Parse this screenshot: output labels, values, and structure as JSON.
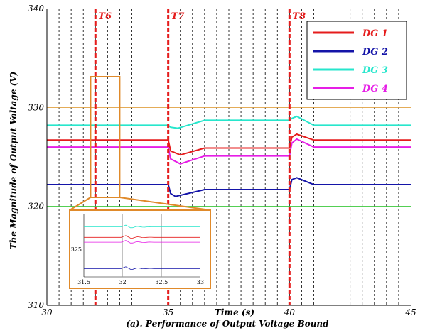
{
  "chart_data": {
    "type": "line",
    "title": "",
    "caption": "(a). Performance of Output Voltage Bound",
    "xlabel": "Time (s)",
    "ylabel": "The Magnitude of Output Voltage (V)",
    "xlim": [
      30,
      45
    ],
    "ylim": [
      310,
      340
    ],
    "x_ticks": [
      30,
      35,
      40,
      45
    ],
    "y_ticks": [
      310,
      320,
      330,
      340
    ],
    "grid": "vertical dashed",
    "legend_position": "top-right",
    "upper_bound": 330,
    "lower_bound": 320,
    "events": [
      {
        "label": "T6",
        "x": 32
      },
      {
        "label": "T7",
        "x": 35
      },
      {
        "label": "T8",
        "x": 40
      }
    ],
    "series": [
      {
        "name": "DG 1",
        "color": "#e51c1c",
        "x": [
          30,
          35,
          35.1,
          35.5,
          36.5,
          40,
          40.1,
          40.3,
          41.0,
          45
        ],
        "y": [
          326.7,
          326.7,
          325.6,
          325.2,
          325.9,
          325.9,
          327.0,
          327.3,
          326.7,
          326.7
        ]
      },
      {
        "name": "DG 2",
        "color": "#1414a8",
        "x": [
          30,
          35,
          35.1,
          35.3,
          36.5,
          40,
          40.1,
          40.3,
          41.0,
          45
        ],
        "y": [
          322.2,
          322.2,
          321.3,
          321.0,
          321.7,
          321.7,
          322.7,
          322.9,
          322.2,
          322.2
        ]
      },
      {
        "name": "DG 3",
        "color": "#27e6cc",
        "x": [
          30,
          35,
          35.1,
          35.4,
          36.5,
          40,
          40.1,
          40.3,
          41.0,
          45
        ],
        "y": [
          328.2,
          328.2,
          328.0,
          327.9,
          328.7,
          328.7,
          328.9,
          329.1,
          328.2,
          328.2
        ]
      },
      {
        "name": "DG 4",
        "color": "#e61ee6",
        "x": [
          30,
          35,
          35.1,
          35.5,
          36.5,
          40,
          40.1,
          40.3,
          41.0,
          45
        ],
        "y": [
          326.0,
          326.0,
          324.8,
          324.3,
          325.1,
          325.1,
          326.4,
          326.8,
          326.0,
          326.0
        ]
      }
    ],
    "inset": {
      "x_ticks": [
        "31.5",
        "32",
        "32.5",
        "33"
      ],
      "y_tick": "325"
    }
  }
}
